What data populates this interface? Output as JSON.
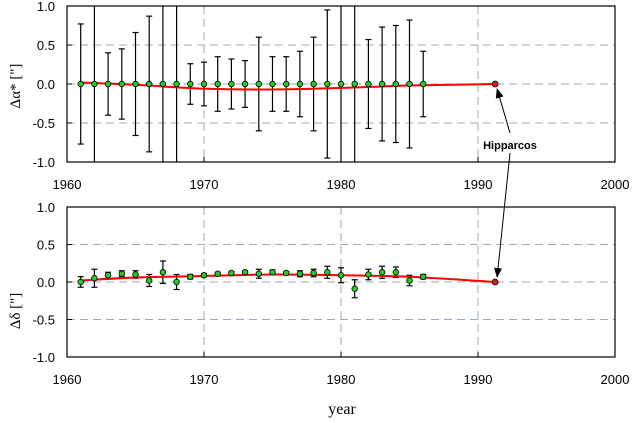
{
  "chart_data": [
    {
      "type": "scatter",
      "panel": "top",
      "ylabel": "Δα* [\"]",
      "xlabel": "",
      "xlim": [
        1960,
        2000
      ],
      "ylim": [
        -1.0,
        1.0
      ],
      "xticks": [
        "1960",
        "1970",
        "1980",
        "1990",
        "2000"
      ],
      "yticks": [
        "1.0",
        "0.5",
        "0.0",
        "-0.5",
        "-1.0"
      ],
      "grid": true,
      "annotation": "Hipparcos",
      "colors": {
        "points": "#22cc22",
        "fit": "#ff0000",
        "grid": "#99aabb",
        "hipparcos_point": "#cc2222"
      },
      "x": [
        1961,
        1962,
        1963,
        1964,
        1965,
        1966,
        1967,
        1968,
        1969,
        1970,
        1971,
        1972,
        1973,
        1974,
        1975,
        1976,
        1977,
        1978,
        1979,
        1980,
        1981,
        1982,
        1983,
        1984,
        1985,
        1986
      ],
      "y": [
        0,
        0,
        0,
        0,
        0,
        0,
        0,
        0,
        0,
        0,
        0,
        0,
        0,
        0,
        0,
        0,
        0,
        0,
        0,
        0,
        0,
        0,
        0,
        0,
        0,
        0
      ],
      "err": [
        0.77,
        1.05,
        0.4,
        0.45,
        0.66,
        0.87,
        1.05,
        1.05,
        0.26,
        0.28,
        0.35,
        0.32,
        0.3,
        0.6,
        0.35,
        0.35,
        0.42,
        0.6,
        0.95,
        1.05,
        1.05,
        0.57,
        0.73,
        0.75,
        0.82,
        0.42
      ],
      "hipparcos": {
        "x": 1991.25,
        "y": 0.0
      },
      "fit": {
        "x": [
          1961,
          1965,
          1970,
          1975,
          1980,
          1985,
          1991.25
        ],
        "y": [
          0.02,
          -0.01,
          -0.06,
          -0.07,
          -0.05,
          -0.02,
          0.0
        ]
      }
    },
    {
      "type": "scatter",
      "panel": "bottom",
      "ylabel": "Δδ [\"]",
      "xlabel": "year",
      "xlim": [
        1960,
        2000
      ],
      "ylim": [
        -1.0,
        1.0
      ],
      "xticks": [
        "1960",
        "1970",
        "1980",
        "1990",
        "2000"
      ],
      "yticks": [
        "1.0",
        "0.5",
        "0.0",
        "-0.5",
        "-1.0"
      ],
      "grid": true,
      "colors": {
        "points": "#22cc22",
        "fit": "#ff0000",
        "grid": "#99aabb",
        "hipparcos_point": "#cc2222"
      },
      "x": [
        1961,
        1962,
        1963,
        1964,
        1965,
        1966,
        1967,
        1968,
        1969,
        1970,
        1971,
        1972,
        1973,
        1974,
        1975,
        1976,
        1977,
        1978,
        1979,
        1980,
        1981,
        1982,
        1983,
        1984,
        1985,
        1986
      ],
      "y": [
        0.0,
        0.05,
        0.09,
        0.11,
        0.1,
        0.02,
        0.13,
        0.0,
        0.07,
        0.09,
        0.11,
        0.12,
        0.13,
        0.11,
        0.13,
        0.12,
        0.11,
        0.12,
        0.13,
        0.09,
        -0.09,
        0.1,
        0.13,
        0.13,
        0.02,
        0.07
      ],
      "err": [
        0.07,
        0.12,
        0.04,
        0.04,
        0.05,
        0.08,
        0.15,
        0.1,
        0.03,
        0.02,
        0.02,
        0.02,
        0.02,
        0.06,
        0.03,
        0.02,
        0.04,
        0.05,
        0.08,
        0.1,
        0.12,
        0.07,
        0.08,
        0.07,
        0.07,
        0.03
      ],
      "hipparcos": {
        "x": 1991.25,
        "y": 0.0
      },
      "fit": {
        "x": [
          1961,
          1965,
          1970,
          1975,
          1980,
          1985,
          1991.25
        ],
        "y": [
          0.02,
          0.06,
          0.08,
          0.1,
          0.09,
          0.07,
          0.0
        ]
      }
    }
  ]
}
